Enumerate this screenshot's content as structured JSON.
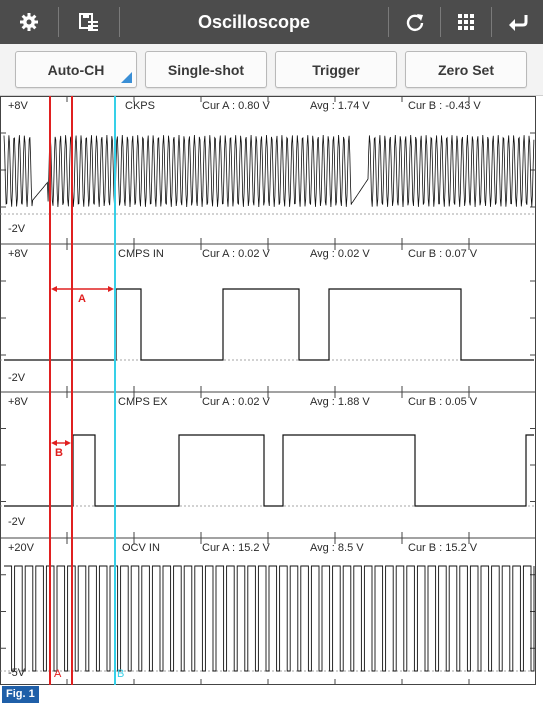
{
  "app": {
    "title": "Oscilloscope",
    "left_icons": [
      "gear-icon",
      "save-list-icon"
    ],
    "right_icons": [
      "refresh-icon",
      "grid-icon",
      "back-icon"
    ]
  },
  "toolbar": {
    "auto_ch": "Auto-CH",
    "single_shot": "Single-shot",
    "trigger": "Trigger",
    "zero_set": "Zero Set"
  },
  "colors": {
    "topbar": "#4c4c4c",
    "cursor_a": "#e02020",
    "cursor_b": "#e02020",
    "trigger_line": "#36d0e8",
    "trace": "#111111",
    "figure_label": "#1f5fa8"
  },
  "channels": [
    {
      "name": "CKPS",
      "top": "+8V",
      "bottom": "-2V",
      "cur_a": "Cur A : 0.80 V",
      "avg": "Avg : 1.74 V",
      "cur_b": "Cur B : -0.43 V"
    },
    {
      "name": "CMPS IN",
      "top": "+8V",
      "bottom": "-2V",
      "cur_a": "Cur A : 0.02 V",
      "avg": "Avg : 0.02 V",
      "cur_b": "Cur B : 0.07 V"
    },
    {
      "name": "CMPS EX",
      "top": "+8V",
      "bottom": "-2V",
      "cur_a": "Cur A : 0.02 V",
      "avg": "Avg : 1.88 V",
      "cur_b": "Cur B : 0.05 V"
    },
    {
      "name": "OCV IN",
      "top": "+20V",
      "bottom": "-5V",
      "cur_a": "Cur A : 15.2 V",
      "avg": "Avg : 8.5 V",
      "cur_b": "Cur B : 15.2 V"
    }
  ],
  "markers": {
    "interval_a": "A",
    "interval_b": "B",
    "cursor_a_label": "A",
    "cursor_b_label": "B"
  },
  "figure_label": "Fig. 1"
}
